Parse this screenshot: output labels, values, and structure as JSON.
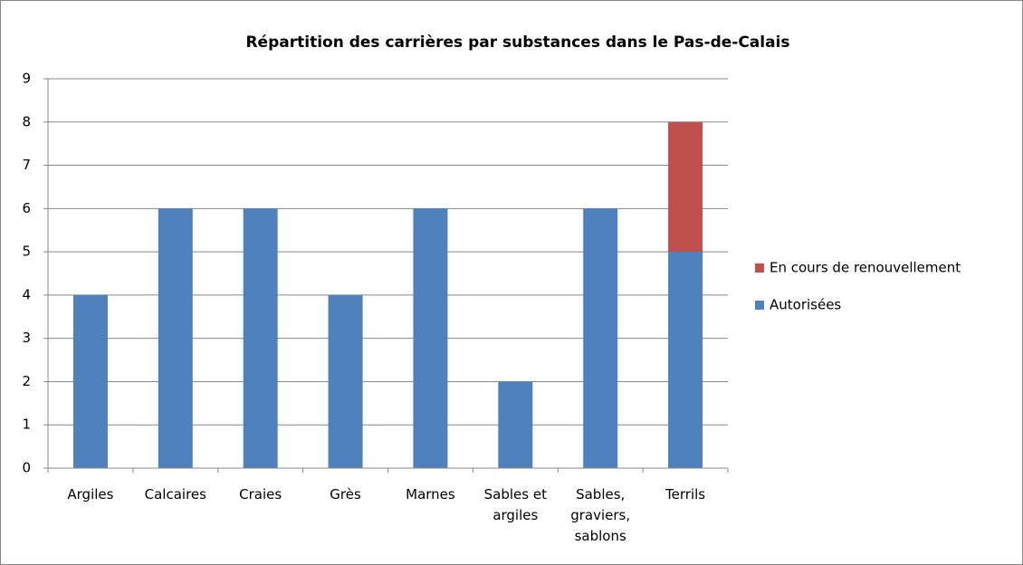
{
  "chart_data": {
    "type": "stacked_bar",
    "title": "Répartition des carrières par substances dans le Pas-de-Calais",
    "categories": [
      "Argiles",
      "Calcaires",
      "Craies",
      "Grès",
      "Marnes",
      "Sables et argiles",
      "Sables, graviers, sablons",
      "Terrils"
    ],
    "series": [
      {
        "name": "Autorisées",
        "color": "#4f81bd",
        "values": [
          4,
          6,
          6,
          4,
          6,
          2,
          6,
          5
        ]
      },
      {
        "name": "En cours de renouvellement",
        "color": "#c0504d",
        "values": [
          0,
          0,
          0,
          0,
          0,
          0,
          0,
          3
        ]
      }
    ],
    "ylim": [
      0,
      9
    ],
    "yticks": [
      0,
      1,
      2,
      3,
      4,
      5,
      6,
      7,
      8,
      9
    ],
    "grid": true,
    "legend": "right"
  }
}
